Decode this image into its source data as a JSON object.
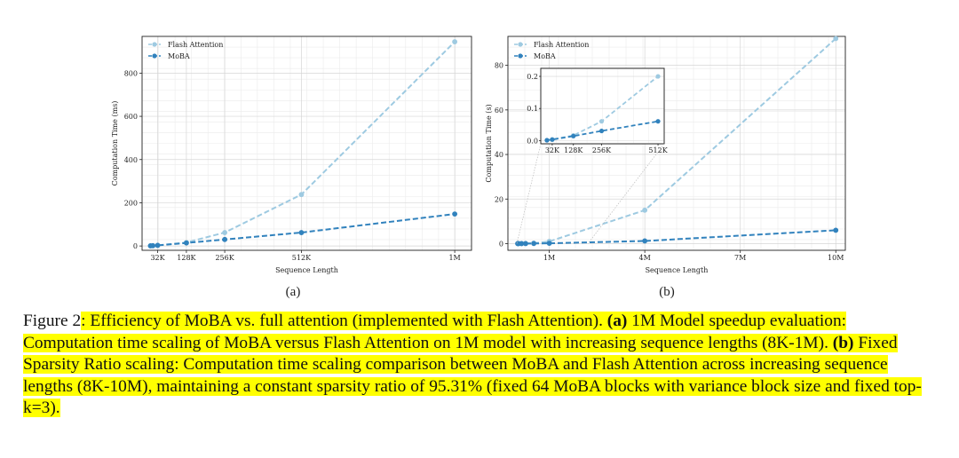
{
  "chart_data": [
    {
      "type": "line",
      "panel": "(a)",
      "xlabel": "Sequence Length",
      "ylabel": "Computation Time (ms)",
      "xlim": [
        -20,
        1080
      ],
      "ylim": [
        -20,
        970
      ],
      "xticks": [
        {
          "v": 32,
          "label": "32K"
        },
        {
          "v": 128,
          "label": "128K"
        },
        {
          "v": 256,
          "label": "256K"
        },
        {
          "v": 512,
          "label": "512K"
        },
        {
          "v": 1024,
          "label": "1M"
        }
      ],
      "yticks": [
        0,
        200,
        400,
        600,
        800
      ],
      "series": [
        {
          "name": "Flash Attention",
          "color": "#9ecae1",
          "x": [
            8,
            16,
            32,
            128,
            256,
            512,
            1024
          ],
          "y": [
            0.5,
            1,
            3,
            16,
            62,
            238,
            945
          ]
        },
        {
          "name": "MoBA",
          "color": "#3182bd",
          "x": [
            8,
            16,
            32,
            128,
            256,
            512,
            1024
          ],
          "y": [
            1,
            1.5,
            3,
            14,
            30,
            62,
            148
          ]
        }
      ]
    },
    {
      "type": "line",
      "panel": "(b)",
      "xlabel": "Sequence Length",
      "ylabel": "Computation Time (s)",
      "xlim": [
        -0.3,
        10.3
      ],
      "ylim": [
        -3,
        93
      ],
      "xticks": [
        {
          "v": 1,
          "label": "1M"
        },
        {
          "v": 4,
          "label": "4M"
        },
        {
          "v": 7,
          "label": "7M"
        },
        {
          "v": 10,
          "label": "10M"
        }
      ],
      "yticks": [
        0,
        20,
        40,
        60,
        80
      ],
      "series": [
        {
          "name": "Flash Attention",
          "color": "#9ecae1",
          "x": [
            0.008,
            0.032,
            0.128,
            0.256,
            0.512,
            1,
            4,
            10
          ],
          "y": [
            0.001,
            0.004,
            0.016,
            0.06,
            0.2,
            1.0,
            15,
            92
          ]
        },
        {
          "name": "MoBA",
          "color": "#3182bd",
          "x": [
            0.008,
            0.032,
            0.128,
            0.256,
            0.512,
            1,
            4,
            10
          ],
          "y": [
            0.001,
            0.003,
            0.014,
            0.03,
            0.06,
            0.15,
            1.2,
            6
          ]
        }
      ],
      "inset": {
        "xlim": [
          -0.02,
          0.54
        ],
        "ylim": [
          -0.01,
          0.225
        ],
        "xticks": [
          {
            "v": 0.032,
            "label": "32K"
          },
          {
            "v": 0.128,
            "label": "128K"
          },
          {
            "v": 0.256,
            "label": "256K"
          },
          {
            "v": 0.512,
            "label": "512K"
          }
        ],
        "yticks": [
          {
            "v": 0.0,
            "label": "0.0"
          },
          {
            "v": 0.1,
            "label": "0.1"
          },
          {
            "v": 0.2,
            "label": "0.2"
          }
        ],
        "series": [
          {
            "name": "Flash Attention",
            "x": [
              0.008,
              0.032,
              0.128,
              0.256,
              0.512
            ],
            "y": [
              0.001,
              0.004,
              0.016,
              0.06,
              0.2
            ]
          },
          {
            "name": "MoBA",
            "x": [
              0.008,
              0.032,
              0.128,
              0.256,
              0.512
            ],
            "y": [
              0.001,
              0.003,
              0.014,
              0.03,
              0.06
            ]
          }
        ]
      }
    }
  ],
  "caption": {
    "figure_label": "Figure 2",
    "title_text": ": Efficiency of MoBA vs.  full attention (implemented with Flash Attention).",
    "part_a_label": "(a)",
    "part_a_text": " 1M Model speedup evaluation: Computation time scaling of MoBA versus Flash Attention on 1M model with increasing sequence lengths (8K-1M).",
    "part_b_label": "(b)",
    "part_b_text": " Fixed Sparsity Ratio scaling: Computation time scaling comparison between MoBA and Flash Attention across increasing sequence lengths (8K-10M), maintaining a constant sparsity ratio of 95.31% (fixed 64 MoBA blocks with variance block size and fixed top-k=3)."
  }
}
